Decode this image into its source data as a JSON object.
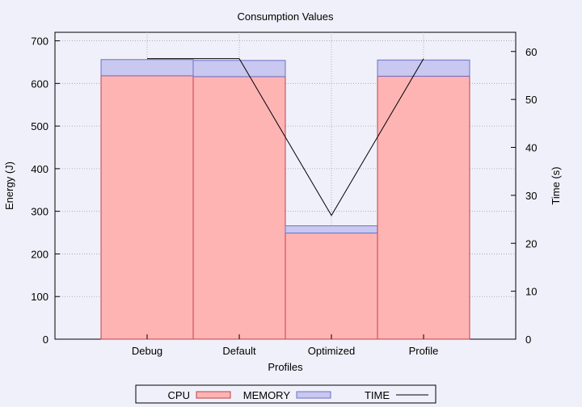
{
  "chart_data": {
    "type": "bar",
    "title": "Consumption Values",
    "xlabel": "Profiles",
    "ylabel": "Energy (J)",
    "y2label": "Time (s)",
    "categories": [
      "Debug",
      "Default",
      "Optimized",
      "Profile"
    ],
    "ylim": [
      0,
      720
    ],
    "y2lim": [
      0,
      64
    ],
    "yticks": [
      0,
      100,
      200,
      300,
      400,
      500,
      600,
      700
    ],
    "y2ticks": [
      0,
      10,
      20,
      30,
      40,
      50,
      60
    ],
    "grid": true,
    "legend_position": "bottom",
    "stacked": true,
    "series": [
      {
        "name": "CPU",
        "type": "bar",
        "axis": "y",
        "values": [
          618,
          616,
          249,
          617
        ],
        "color": "#ffb4b4",
        "stroke": "#c0404a"
      },
      {
        "name": "MEMORY",
        "type": "bar",
        "axis": "y",
        "values": [
          38,
          38,
          17,
          38
        ],
        "color": "#c8c8f0",
        "stroke": "#7070c8"
      },
      {
        "name": "TIME",
        "type": "line",
        "axis": "y2",
        "values": [
          58.5,
          58.5,
          25.8,
          58.5
        ],
        "color": "#000000"
      }
    ]
  }
}
